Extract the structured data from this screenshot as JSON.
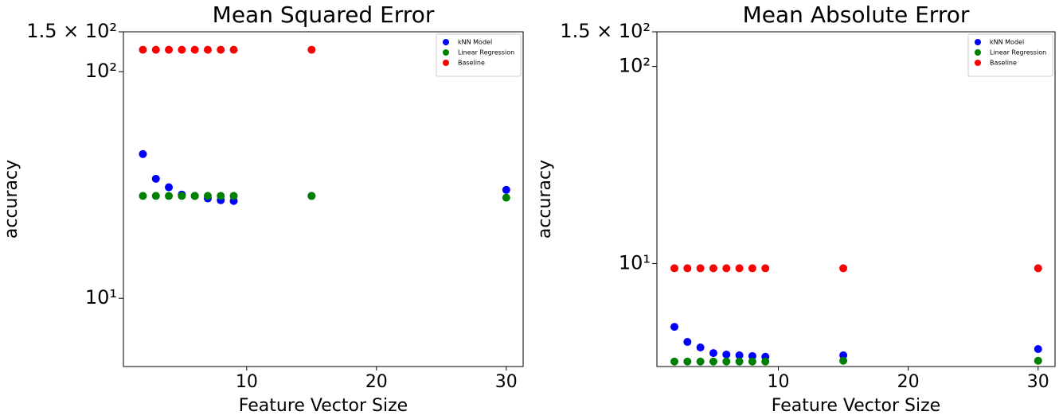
{
  "chart_data": [
    {
      "type": "scatter",
      "title": "Mean Squared Error",
      "xlabel": "Feature Vector Size",
      "ylabel": "accuracy",
      "log_y": true,
      "legend": "upper right",
      "xlim": [
        0.5,
        31.3
      ],
      "ylim": [
        5,
        150
      ],
      "xticks": [
        10,
        20,
        30
      ],
      "yticks": [
        {
          "value": 10,
          "label": "10¹"
        },
        {
          "value": 100,
          "label": "10²"
        },
        {
          "value": 150,
          "label": "1.5 × 10²"
        }
      ],
      "x": [
        2,
        3,
        4,
        5,
        6,
        7,
        8,
        9,
        15,
        30
      ],
      "series": [
        {
          "name": "kNN Model",
          "color": "#0000ff",
          "values": [
            43.3,
            33.7,
            30.9,
            28.7,
            28.3,
            27.6,
            27.1,
            26.9,
            28.3,
            30.1
          ]
        },
        {
          "name": "Linear Regression",
          "color": "#008000",
          "values": [
            28.3,
            28.3,
            28.3,
            28.3,
            28.3,
            28.3,
            28.3,
            28.3,
            28.3,
            27.8
          ]
        },
        {
          "name": "Baseline",
          "color": "#ff0000",
          "values": [
            125,
            125,
            125,
            125,
            125,
            125,
            125,
            125,
            125,
            126
          ]
        }
      ]
    },
    {
      "type": "scatter",
      "title": "Mean Absolute Error",
      "xlabel": "Feature Vector Size",
      "ylabel": "accuracy",
      "log_y": true,
      "legend": "upper right",
      "xlim": [
        0.65,
        31.3
      ],
      "ylim": [
        3,
        150
      ],
      "xticks": [
        10,
        20,
        30
      ],
      "yticks": [
        {
          "value": 10,
          "label": "10¹"
        },
        {
          "value": 100,
          "label": "10²"
        },
        {
          "value": 150,
          "label": "1.5 × 10²"
        }
      ],
      "x": [
        2,
        3,
        4,
        5,
        6,
        7,
        8,
        9,
        15,
        30
      ],
      "series": [
        {
          "name": "kNN Model",
          "color": "#0000ff",
          "values": [
            4.77,
            4.0,
            3.75,
            3.51,
            3.45,
            3.42,
            3.39,
            3.36,
            3.42,
            3.68
          ]
        },
        {
          "name": "Linear Regression",
          "color": "#008000",
          "values": [
            3.18,
            3.18,
            3.18,
            3.18,
            3.18,
            3.18,
            3.18,
            3.18,
            3.21,
            3.21
          ]
        },
        {
          "name": "Baseline",
          "color": "#ff0000",
          "values": [
            9.46,
            9.46,
            9.46,
            9.46,
            9.46,
            9.46,
            9.46,
            9.46,
            9.46,
            9.46
          ]
        }
      ]
    }
  ]
}
